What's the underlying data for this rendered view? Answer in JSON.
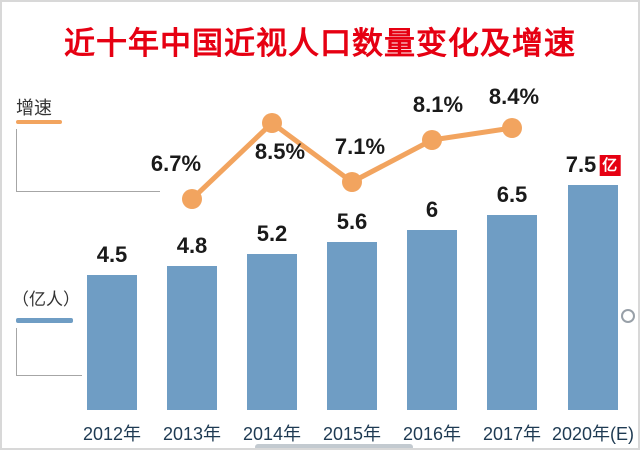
{
  "chart_data": {
    "type": "bar",
    "title": "近十年中国近视人口数量变化及增速",
    "categories": [
      "2012年",
      "2013年",
      "2014年",
      "2015年",
      "2016年",
      "2017年",
      "2020年(E)"
    ],
    "series": [
      {
        "name": "近视人口",
        "chart_type": "bar",
        "unit": "亿人",
        "values": [
          4.5,
          4.8,
          5.2,
          5.6,
          6,
          6.5,
          7.5
        ]
      },
      {
        "name": "增速",
        "chart_type": "line",
        "unit": "%",
        "values": [
          null,
          6.7,
          8.5,
          7.1,
          8.1,
          8.4,
          null
        ]
      }
    ],
    "legend": {
      "growth_label": "增速",
      "unit_label": "（亿人）"
    },
    "annotations": {
      "last_bar_unit_badge": "亿",
      "badge_bar_index": 6
    },
    "layout": {
      "legend_position": "left",
      "grid": false,
      "yaxis_visible": false,
      "value_labels": "above-bars",
      "growth_label_positions": [
        "above",
        "below",
        "above",
        "above",
        "above"
      ]
    },
    "colors": {
      "title": "#e60012",
      "bar": "#6f9dc4",
      "line": "#f2a45f",
      "badge_bg": "#e60012",
      "badge_text": "#ffffff",
      "value_text": "#1a1a1a",
      "axis_text": "#1e3a52",
      "legend_text": "#333333"
    }
  }
}
